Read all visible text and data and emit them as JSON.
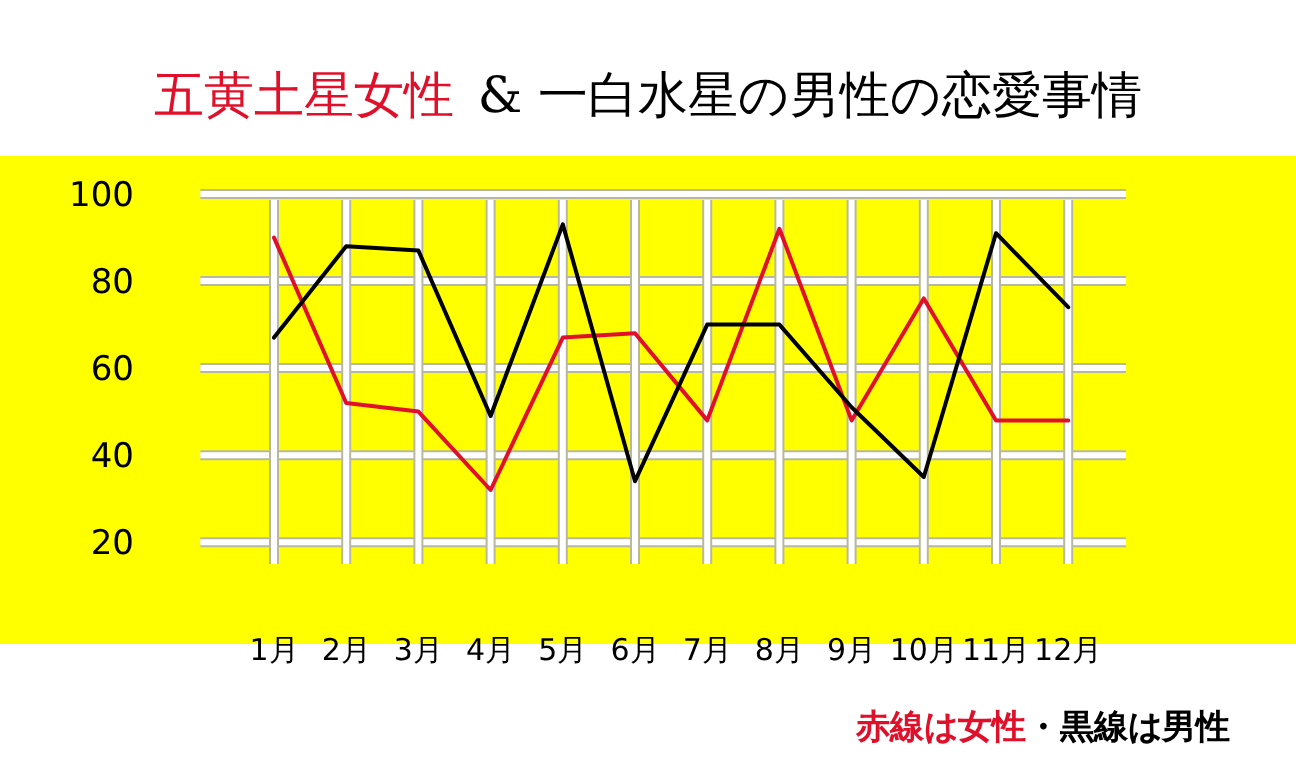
{
  "chart_data": {
    "type": "line",
    "title": "五黄土星女性",
    "subtitle": "& 一白水星の男性の恋愛事情",
    "categories": [
      "1月",
      "2月",
      "3月",
      "4月",
      "5月",
      "6月",
      "7月",
      "8月",
      "9月",
      "10月",
      "11月",
      "12月"
    ],
    "series": [
      {
        "name": "赤線は女性",
        "color": "#e0102a",
        "values": [
          90,
          52,
          50,
          32,
          67,
          68,
          48,
          92,
          48,
          76,
          48,
          48
        ]
      },
      {
        "name": "・黒線は男性",
        "color": "#000000",
        "values": [
          67,
          88,
          87,
          49,
          93,
          34,
          70,
          70,
          51,
          35,
          91,
          74
        ]
      }
    ],
    "ylim": [
      15,
      100
    ],
    "yticks": [
      20,
      40,
      60,
      80,
      100
    ],
    "grid": true,
    "legend": "bottom right",
    "marker": "none",
    "line_style": "solid"
  }
}
